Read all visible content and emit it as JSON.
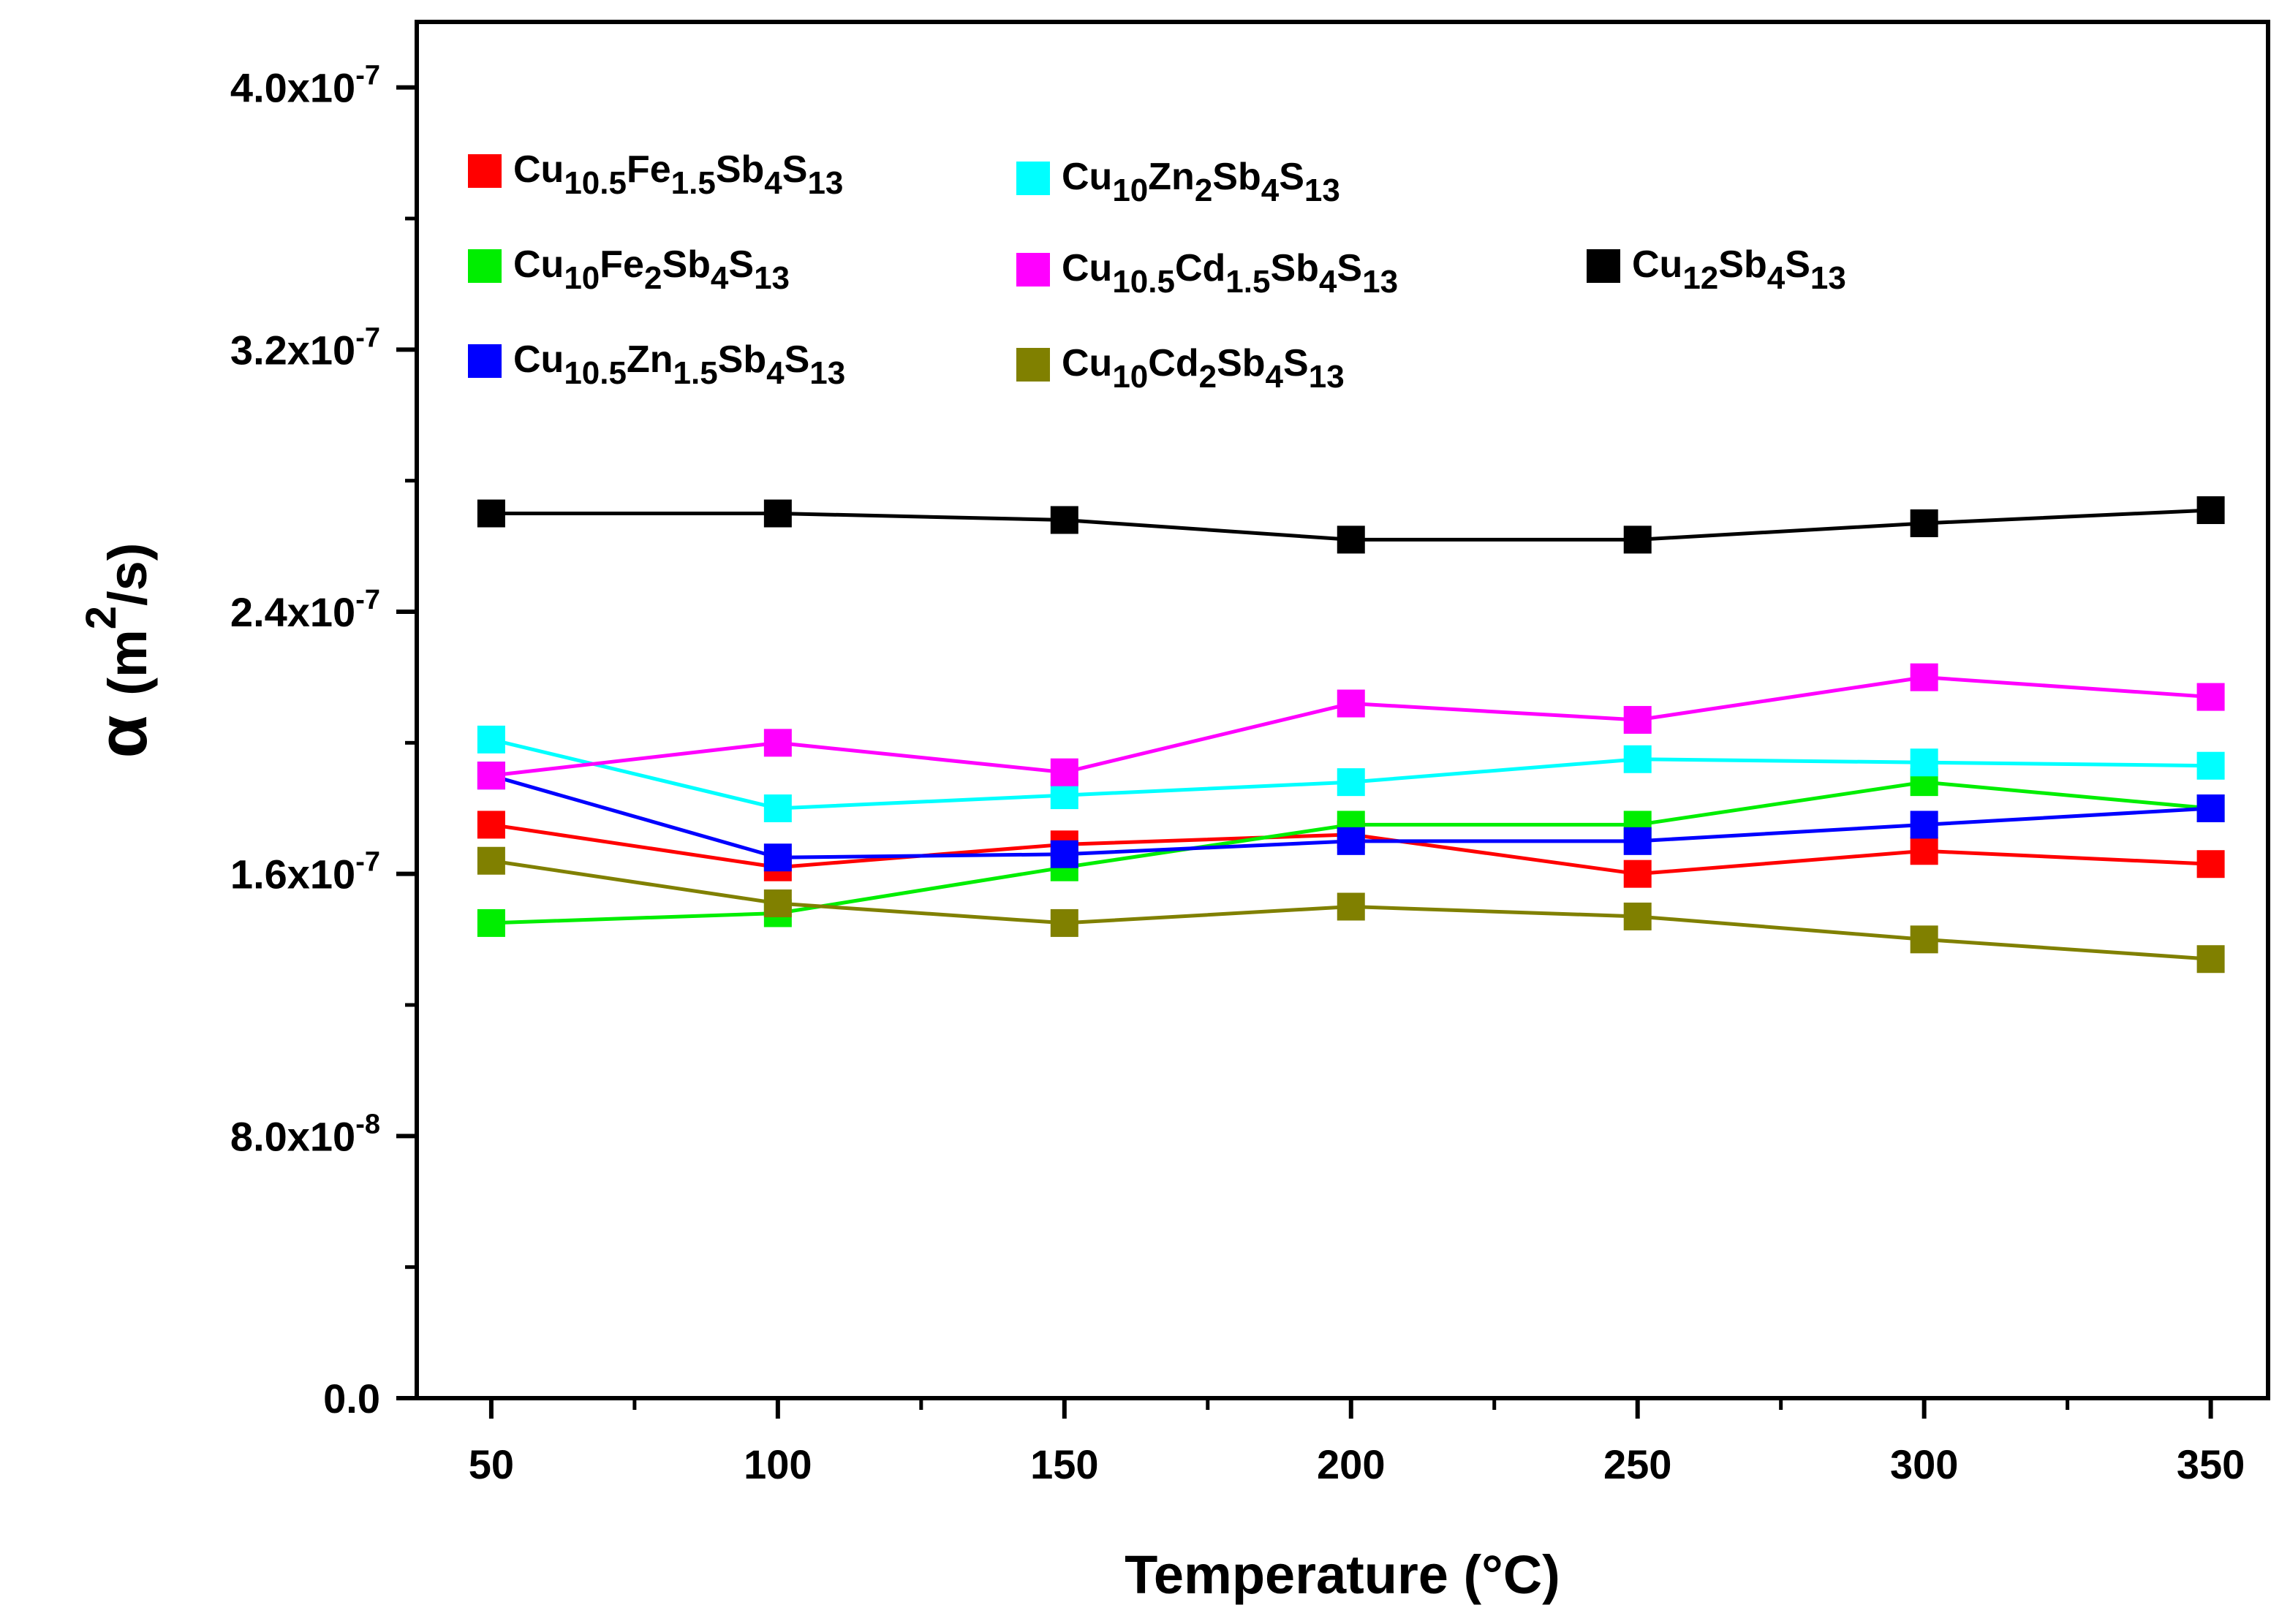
{
  "chart_data": {
    "type": "line",
    "title": "",
    "xlabel": "Temperature (°C)",
    "ylabel": "α (m²/s)",
    "ylabel_parts": {
      "symbol": "α",
      "open": "(m",
      "exp": "2",
      "close": "/s)"
    },
    "xlim": [
      37,
      360
    ],
    "ylim": [
      0,
      4.2e-07
    ],
    "x": [
      50,
      100,
      150,
      200,
      250,
      300,
      350
    ],
    "x_ticks": [
      {
        "value": 50,
        "label": "50"
      },
      {
        "value": 100,
        "label": "100"
      },
      {
        "value": 150,
        "label": "150"
      },
      {
        "value": 200,
        "label": "200"
      },
      {
        "value": 250,
        "label": "250"
      },
      {
        "value": 300,
        "label": "300"
      },
      {
        "value": 350,
        "label": "350"
      }
    ],
    "y_ticks": [
      {
        "value": 0,
        "label": "0.0",
        "exp": ""
      },
      {
        "value": 8e-08,
        "label": "8.0x10",
        "exp": "-8"
      },
      {
        "value": 1.6e-07,
        "label": "1.6x10",
        "exp": "-7"
      },
      {
        "value": 2.4e-07,
        "label": "2.4x10",
        "exp": "-7"
      },
      {
        "value": 3.2e-07,
        "label": "3.2x10",
        "exp": "-7"
      },
      {
        "value": 4e-07,
        "label": "4.0x10",
        "exp": "-7"
      }
    ],
    "series": [
      {
        "name": "Cu10.5Fe1.5Sb4S13",
        "color": "#ff0000",
        "label_parts": [
          [
            "Cu",
            ""
          ],
          [
            "10.5",
            "sub"
          ],
          [
            "Fe",
            ""
          ],
          [
            "1.5",
            "sub"
          ],
          [
            "Sb",
            ""
          ],
          [
            "4",
            "sub"
          ],
          [
            "S",
            ""
          ],
          [
            "13",
            "sub"
          ]
        ],
        "values": [
          1.75e-07,
          1.62e-07,
          1.69e-07,
          1.72e-07,
          1.6e-07,
          1.67e-07,
          1.63e-07
        ]
      },
      {
        "name": "Cu10Fe2Sb4S13",
        "color": "#00ee00",
        "label_parts": [
          [
            "Cu",
            ""
          ],
          [
            "10",
            "sub"
          ],
          [
            "Fe",
            ""
          ],
          [
            "2",
            "sub"
          ],
          [
            "Sb",
            ""
          ],
          [
            "4",
            "sub"
          ],
          [
            "S",
            ""
          ],
          [
            "13",
            "sub"
          ]
        ],
        "values": [
          1.45e-07,
          1.48e-07,
          1.62e-07,
          1.75e-07,
          1.75e-07,
          1.88e-07,
          1.8e-07
        ]
      },
      {
        "name": "Cu10.5Zn1.5Sb4S13",
        "color": "#0000ff",
        "label_parts": [
          [
            "Cu",
            ""
          ],
          [
            "10.5",
            "sub"
          ],
          [
            "Zn",
            ""
          ],
          [
            "1.5",
            "sub"
          ],
          [
            "Sb",
            ""
          ],
          [
            "4",
            "sub"
          ],
          [
            "S",
            ""
          ],
          [
            "13",
            "sub"
          ]
        ],
        "values": [
          1.9e-07,
          1.65e-07,
          1.66e-07,
          1.7e-07,
          1.7e-07,
          1.75e-07,
          1.8e-07
        ]
      },
      {
        "name": "Cu10Zn2Sb4S13",
        "color": "#00ffff",
        "label_parts": [
          [
            "Cu",
            ""
          ],
          [
            "10",
            "sub"
          ],
          [
            "Zn",
            ""
          ],
          [
            "2",
            "sub"
          ],
          [
            "Sb",
            ""
          ],
          [
            "4",
            "sub"
          ],
          [
            "S",
            ""
          ],
          [
            "13",
            "sub"
          ]
        ],
        "values": [
          2.01e-07,
          1.8e-07,
          1.84e-07,
          1.88e-07,
          1.95e-07,
          1.94e-07,
          1.93e-07
        ]
      },
      {
        "name": "Cu10.5Cd1.5Sb4S13",
        "color": "#ff00ff",
        "label_parts": [
          [
            "Cu",
            ""
          ],
          [
            "10.5",
            "sub"
          ],
          [
            "Cd",
            ""
          ],
          [
            "1.5",
            "sub"
          ],
          [
            "Sb",
            ""
          ],
          [
            "4",
            "sub"
          ],
          [
            "S",
            ""
          ],
          [
            "13",
            "sub"
          ]
        ],
        "values": [
          1.9e-07,
          2e-07,
          1.91e-07,
          2.12e-07,
          2.07e-07,
          2.2e-07,
          2.14e-07
        ]
      },
      {
        "name": "Cu10Cd2Sb4S13",
        "color": "#808000",
        "label_parts": [
          [
            "Cu",
            ""
          ],
          [
            "10",
            "sub"
          ],
          [
            "Cd",
            ""
          ],
          [
            "2",
            "sub"
          ],
          [
            "Sb",
            ""
          ],
          [
            "4",
            "sub"
          ],
          [
            "S",
            ""
          ],
          [
            "13",
            "sub"
          ]
        ],
        "values": [
          1.64e-07,
          1.51e-07,
          1.45e-07,
          1.5e-07,
          1.47e-07,
          1.4e-07,
          1.34e-07
        ]
      },
      {
        "name": "Cu12Sb4S13",
        "color": "#000000",
        "label_parts": [
          [
            "Cu",
            ""
          ],
          [
            "12",
            "sub"
          ],
          [
            "Sb",
            ""
          ],
          [
            "4",
            "sub"
          ],
          [
            "S",
            ""
          ],
          [
            "13",
            "sub"
          ]
        ],
        "values": [
          2.7e-07,
          2.7e-07,
          2.68e-07,
          2.62e-07,
          2.62e-07,
          2.67e-07,
          2.71e-07
        ]
      }
    ],
    "legend": "top-left, inside plot",
    "grid": false
  }
}
